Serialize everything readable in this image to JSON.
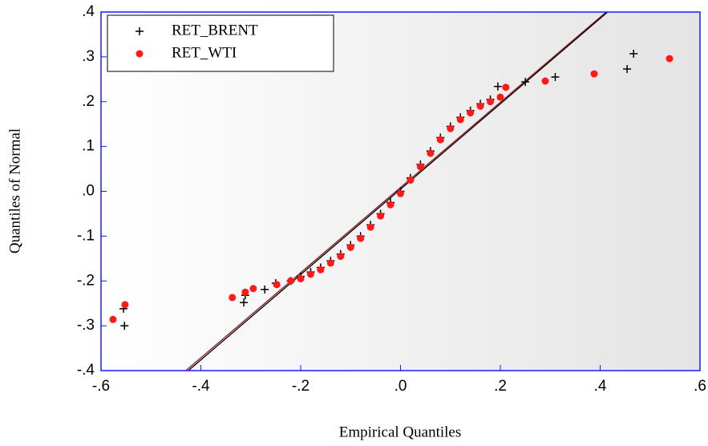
{
  "chart_data": {
    "type": "scatter",
    "xlabel": "Empirical Quantiles",
    "ylabel": "Quantiles of Normal",
    "xlim": [
      -0.6,
      0.6
    ],
    "ylim": [
      -0.4,
      0.4
    ],
    "xticks": [
      {
        "value": -0.6,
        "label": "-.6"
      },
      {
        "value": -0.4,
        "label": "-.4"
      },
      {
        "value": -0.2,
        "label": "-.2"
      },
      {
        "value": 0,
        "label": ".0"
      },
      {
        "value": 0.2,
        "label": ".2"
      },
      {
        "value": 0.4,
        "label": ".4"
      },
      {
        "value": 0.6,
        "label": ".6"
      }
    ],
    "yticks": [
      {
        "value": -0.4,
        "label": "-.4"
      },
      {
        "value": -0.3,
        "label": "-.3"
      },
      {
        "value": -0.2,
        "label": "-.2"
      },
      {
        "value": -0.1,
        "label": "-.1"
      },
      {
        "value": 0,
        "label": ".0"
      },
      {
        "value": 0.1,
        "label": ".1"
      },
      {
        "value": 0.2,
        "label": ".2"
      },
      {
        "value": 0.3,
        "label": ".3"
      },
      {
        "value": 0.4,
        "label": ".4"
      }
    ],
    "legend": "upper-left",
    "reference_lines": [
      {
        "color": "#8b1a1a",
        "x": [
          -0.43,
          0.412
        ],
        "y": [
          -0.4,
          0.4
        ]
      },
      {
        "color": "#000000",
        "x": [
          -0.425,
          0.415
        ],
        "y": [
          -0.4,
          0.4
        ]
      }
    ],
    "series": [
      {
        "name": "RET_BRENT",
        "color": "#000000",
        "marker": "plus",
        "x": [
          -0.553,
          -0.555,
          -0.314,
          -0.311,
          -0.272,
          -0.25,
          -0.22,
          -0.2,
          -0.18,
          -0.16,
          -0.14,
          -0.12,
          -0.1,
          -0.08,
          -0.06,
          -0.04,
          -0.02,
          0,
          0.02,
          0.04,
          0.06,
          0.08,
          0.1,
          0.12,
          0.14,
          0.16,
          0.18,
          0.195,
          0.25,
          0.31,
          0.454,
          0.467
        ],
        "y": [
          -0.3,
          -0.262,
          -0.248,
          -0.232,
          -0.219,
          -0.205,
          -0.2,
          -0.19,
          -0.18,
          -0.17,
          -0.155,
          -0.14,
          -0.12,
          -0.1,
          -0.075,
          -0.05,
          -0.025,
          0,
          0.03,
          0.06,
          0.09,
          0.12,
          0.145,
          0.165,
          0.18,
          0.195,
          0.205,
          0.234,
          0.244,
          0.255,
          0.273,
          0.307
        ]
      },
      {
        "name": "RET_WTI",
        "color": "#ff1a1a",
        "marker": "circle",
        "x": [
          -0.576,
          -0.552,
          -0.337,
          -0.311,
          -0.295,
          -0.248,
          -0.22,
          -0.2,
          -0.18,
          -0.16,
          -0.14,
          -0.12,
          -0.1,
          -0.08,
          -0.06,
          -0.04,
          -0.02,
          0,
          0.02,
          0.04,
          0.06,
          0.08,
          0.1,
          0.12,
          0.14,
          0.16,
          0.18,
          0.2,
          0.211,
          0.29,
          0.388,
          0.539
        ],
        "y": [
          -0.286,
          -0.253,
          -0.237,
          -0.225,
          -0.217,
          -0.208,
          -0.2,
          -0.195,
          -0.185,
          -0.175,
          -0.16,
          -0.145,
          -0.125,
          -0.105,
          -0.08,
          -0.055,
          -0.03,
          -0.005,
          0.025,
          0.055,
          0.085,
          0.115,
          0.14,
          0.16,
          0.175,
          0.19,
          0.2,
          0.21,
          0.232,
          0.246,
          0.262,
          0.296
        ]
      }
    ]
  }
}
